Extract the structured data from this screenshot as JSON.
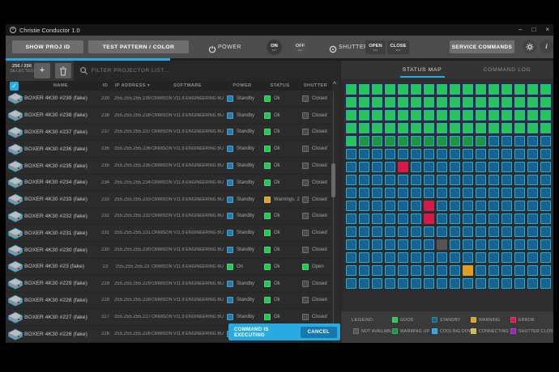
{
  "window": {
    "title": "Christie Conductor 1.0"
  },
  "icons": {
    "minimize": "–",
    "maximize": "□",
    "close": "×",
    "check": "✓",
    "plus": "+",
    "sort": "▾",
    "scroll_up": "^",
    "info": "i",
    "pending_dots": "•••"
  },
  "toolbar": {
    "show_proj_id": "SHOW PROJ ID",
    "test_pattern": "TEST PATTERN / COLOR",
    "power_label": "POWER",
    "power_on": "ON",
    "power_off": "OFF",
    "shutter_label": "SHUTTER",
    "shutter_open": "OPEN",
    "shutter_close": "CLOSE",
    "service_commands": "SERVICE COMMANDS"
  },
  "selection": {
    "count": "256 / 256",
    "label": "SELECTED"
  },
  "filter": {
    "placeholder": "FILTER PROJECTOR LIST..."
  },
  "table": {
    "columns": [
      "NAME",
      "ID",
      "IP ADDRESS",
      "SOFTWARE",
      "POWER",
      "STATUS",
      "SHUTTER"
    ],
    "sorted_by": "IP ADDRESS",
    "software": "CRIMSON V11.8 ENGINEERING BUILD",
    "rows": [
      {
        "name": "BOXER 4K30 #239 (fake)",
        "id": "239",
        "ip": "255.255.255.239",
        "power": "Standby",
        "power_type": "standby",
        "status": "Ok",
        "status_type": "ok",
        "shutter": "Closed",
        "shutter_type": "closed"
      },
      {
        "name": "BOXER 4K30 #238 (fake)",
        "id": "238",
        "ip": "255.255.255.238",
        "power": "Standby",
        "power_type": "standby",
        "status": "Ok",
        "status_type": "ok",
        "shutter": "Closed",
        "shutter_type": "closed"
      },
      {
        "name": "BOXER 4K30 #237 (fake)",
        "id": "237",
        "ip": "255.255.255.237",
        "power": "Standby",
        "power_type": "standby",
        "status": "Ok",
        "status_type": "ok",
        "shutter": "Closed",
        "shutter_type": "closed"
      },
      {
        "name": "BOXER 4K30 #236 (fake)",
        "id": "236",
        "ip": "255.255.255.236",
        "power": "Standby",
        "power_type": "standby",
        "status": "Ok",
        "status_type": "ok",
        "shutter": "Closed",
        "shutter_type": "closed"
      },
      {
        "name": "BOXER 4K30 #235 (fake)",
        "id": "235",
        "ip": "255.255.255.235",
        "power": "Standby",
        "power_type": "standby",
        "status": "Ok",
        "status_type": "ok",
        "shutter": "Closed",
        "shutter_type": "closed"
      },
      {
        "name": "BOXER 4K30 #234 (fake)",
        "id": "234",
        "ip": "255.255.255.234",
        "power": "Standby",
        "power_type": "standby",
        "status": "Ok",
        "status_type": "ok",
        "shutter": "Closed",
        "shutter_type": "closed"
      },
      {
        "name": "BOXER 4K30 #233 (fake)",
        "id": "233",
        "ip": "255.255.255.233",
        "power": "Standby",
        "power_type": "standby",
        "status": "Warnings: 2",
        "status_type": "warning",
        "shutter": "Closed",
        "shutter_type": "closed"
      },
      {
        "name": "BOXER 4K30 #232 (fake)",
        "id": "232",
        "ip": "255.255.255.232",
        "power": "Standby",
        "power_type": "standby",
        "status": "Ok",
        "status_type": "ok",
        "shutter": "Closed",
        "shutter_type": "closed"
      },
      {
        "name": "BOXER 4K30 #231 (fake)",
        "id": "231",
        "ip": "255.255.255.231",
        "power": "Standby",
        "power_type": "standby",
        "status": "Ok",
        "status_type": "ok",
        "shutter": "Closed",
        "shutter_type": "closed"
      },
      {
        "name": "BOXER 4K30 #230 (fake)",
        "id": "230",
        "ip": "255.255.255.230",
        "power": "Standby",
        "power_type": "standby",
        "status": "Ok",
        "status_type": "ok",
        "shutter": "Closed",
        "shutter_type": "closed"
      },
      {
        "name": "BOXER 4K30 #23 (fake)",
        "id": "23",
        "ip": "255.255.255.23",
        "power": "On",
        "power_type": "on",
        "status": "Ok",
        "status_type": "ok",
        "shutter": "Open",
        "shutter_type": "open"
      },
      {
        "name": "BOXER 4K30 #229 (fake)",
        "id": "229",
        "ip": "255.255.255.229",
        "power": "Standby",
        "power_type": "standby",
        "status": "Ok",
        "status_type": "ok",
        "shutter": "Closed",
        "shutter_type": "closed"
      },
      {
        "name": "BOXER 4K30 #228 (fake)",
        "id": "228",
        "ip": "255.255.255.228",
        "power": "Standby",
        "power_type": "standby",
        "status": "Ok",
        "status_type": "ok",
        "shutter": "Closed",
        "shutter_type": "closed"
      },
      {
        "name": "BOXER 4K30 #227 (fake)",
        "id": "227",
        "ip": "255.255.255.227",
        "power": "Standby",
        "power_type": "standby",
        "status": "Ok",
        "status_type": "ok",
        "shutter": "Closed",
        "shutter_type": "closed"
      },
      {
        "name": "BOXER 4K30 #226 (fake)",
        "id": "226",
        "ip": "255.255.255.226",
        "power": "Standby",
        "power_type": "standby",
        "status": "Ok",
        "status_type": "ok",
        "shutter": "Closed",
        "shutter_type": "closed"
      }
    ]
  },
  "execution": {
    "message": "COMMAND IS EXECUTING",
    "cancel_label": "CANCEL",
    "progress_pct": 30
  },
  "right": {
    "tab_status_map": "STATUS MAP",
    "tab_command_log": "COMMAND LOG"
  },
  "status_map": {
    "columns": 16,
    "rows": [
      "GGGGGGGGGGGGGGGG",
      "GGGGGGGGGGGGGGGG",
      "GGGGGGGGGGGGGGGG",
      "GGGGGGGGGGGGGGGG",
      "GWWWWWWWWWWSSSSS",
      "SSSSSSSSSSSSSSSS",
      "SSSSESSSSSSSSSSS",
      "SSSSSSSSSSSSSSSS",
      "SSSSSSSSSSSSSSSS",
      "SSSSSSESSSSSSSSS",
      "SSSSSSESSSSSSSSS",
      "SSSSSSSSSSSSSSSS",
      "SSSSSSSNSSSSSSSS",
      "SSSSSSSSSSSSSSSS",
      "SSSSSSSSSASSSSSS",
      "SSSSSSSSSSSSSSSS"
    ]
  },
  "legend": {
    "title": "LEGEND:",
    "row1": [
      {
        "label": "GOOD",
        "color": "good"
      },
      {
        "label": "STANDBY",
        "color": "standby"
      },
      {
        "label": "WARNING",
        "color": "warning"
      },
      {
        "label": "ERROR",
        "color": "error"
      }
    ],
    "row2": [
      {
        "label": "NOT AVAILABLE",
        "color": "not_available"
      },
      {
        "label": "WARMING UP",
        "color": "warmup"
      },
      {
        "label": "COOLING DOWN",
        "color": "cooldown"
      },
      {
        "label": "CONNECTING",
        "color": "connecting"
      },
      {
        "label": "SHUTTER CLOSED",
        "color": "shutter_closed"
      }
    ]
  },
  "colors": {
    "accent": "#29ABE2",
    "good": "#22C755",
    "warmup": "#1E9447",
    "standby": "#17648F",
    "cell_border": "#2DA9E1",
    "error": "#D4194B",
    "warning": "#D9A02A",
    "not_available": "#555555",
    "cooldown": "#2BA7DF",
    "connecting": "#CBBD55",
    "shutter_closed": "#9027AE",
    "chip_standby": "#1F7FB2",
    "chip_closed": "#4A4A4A"
  }
}
